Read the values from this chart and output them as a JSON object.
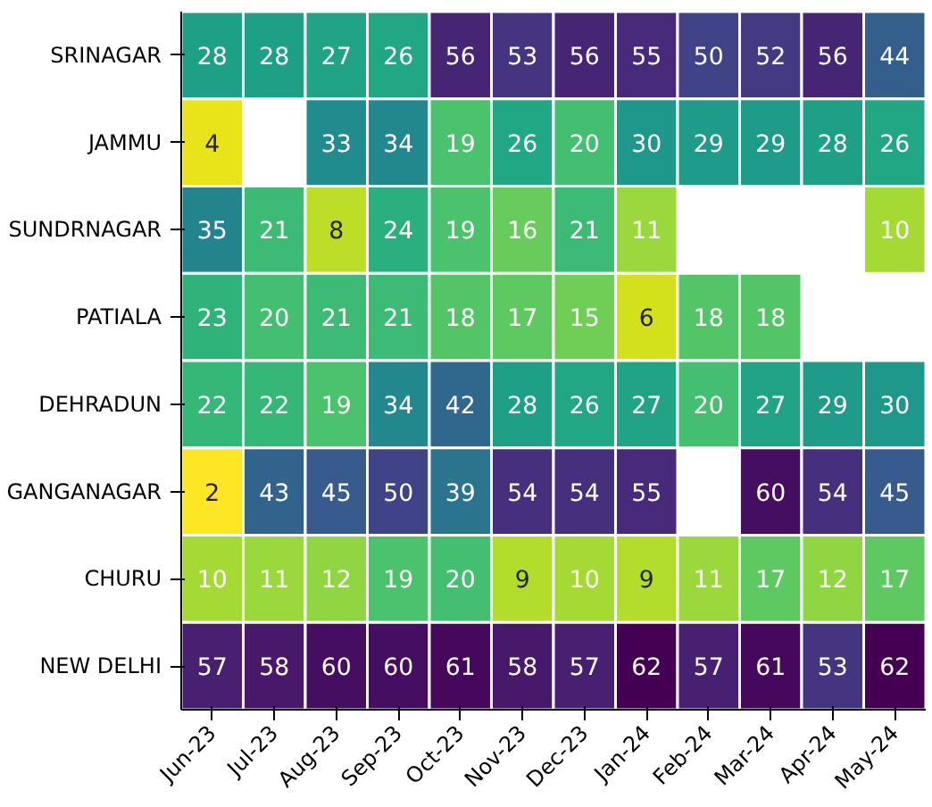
{
  "chart_data": {
    "type": "heatmap",
    "categories": [
      "Jun-23",
      "Jul-23",
      "Aug-23",
      "Sep-23",
      "Oct-23",
      "Nov-23",
      "Dec-23",
      "Jan-24",
      "Feb-24",
      "Mar-24",
      "Apr-24",
      "May-24"
    ],
    "y_categories": [
      "SRINAGAR",
      "JAMMU",
      "SUNDRNAGAR",
      "PATIALA",
      "DEHRADUN",
      "GANGANAGAR",
      "CHURU",
      "NEW DELHI"
    ],
    "cells": [
      [
        28,
        28,
        27,
        26,
        56,
        53,
        56,
        55,
        50,
        52,
        56,
        44
      ],
      [
        4,
        null,
        33,
        34,
        19,
        26,
        20,
        30,
        29,
        29,
        28,
        26
      ],
      [
        35,
        21,
        8,
        24,
        19,
        16,
        21,
        11,
        null,
        null,
        null,
        10
      ],
      [
        23,
        20,
        21,
        21,
        18,
        17,
        15,
        6,
        18,
        18,
        null,
        null
      ],
      [
        22,
        22,
        19,
        34,
        42,
        28,
        26,
        27,
        20,
        27,
        29,
        30
      ],
      [
        2,
        43,
        45,
        50,
        39,
        54,
        54,
        55,
        null,
        60,
        54,
        45
      ],
      [
        10,
        11,
        12,
        19,
        20,
        9,
        10,
        9,
        11,
        17,
        12,
        17
      ],
      [
        57,
        58,
        60,
        60,
        61,
        58,
        57,
        62,
        57,
        61,
        53,
        62
      ]
    ],
    "data_labels": true
  }
}
